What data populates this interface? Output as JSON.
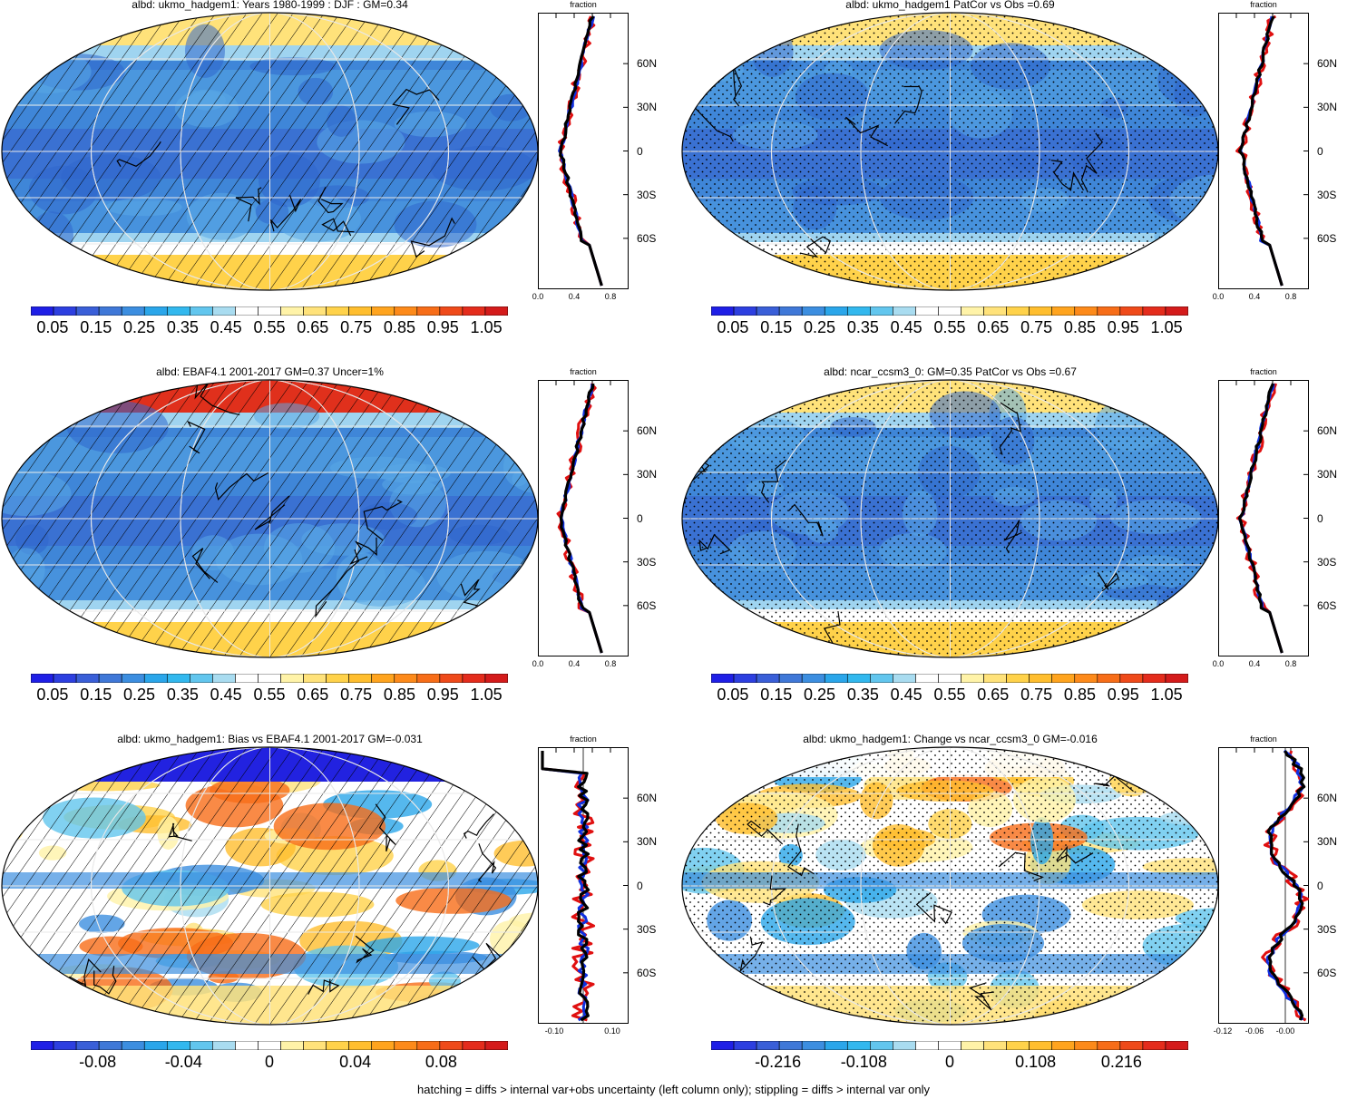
{
  "panels": [
    {
      "id": "p1",
      "title": "albd: ukmo_hadgem1: Years 1980-1999 : DJF : GM=0.34",
      "col": 0,
      "row": 0,
      "palette": "abs",
      "overlay": "hatch",
      "polar": "yellow"
    },
    {
      "id": "p2",
      "title": "albd: ukmo_hadgem1 PatCor vs Obs =0.69",
      "col": 1,
      "row": 0,
      "palette": "abs",
      "overlay": "stipple",
      "polar": "yellow"
    },
    {
      "id": "p3",
      "title": "albd: EBAF4.1 2001-2017 GM=0.37 Uncer=1%",
      "col": 0,
      "row": 1,
      "palette": "abs",
      "overlay": "hatch",
      "polar": "red"
    },
    {
      "id": "p4",
      "title": "albd: ncar_ccsm3_0: GM=0.35 PatCor vs Obs =0.67",
      "col": 1,
      "row": 1,
      "palette": "abs",
      "overlay": "stipple",
      "polar": "yellow"
    },
    {
      "id": "p5",
      "title": "albd: ukmo_hadgem1: Bias vs EBAF4.1 2001-2017 GM=-0.031",
      "col": 0,
      "row": 2,
      "palette": "diff",
      "overlay": "hatch",
      "polar": "blue"
    },
    {
      "id": "p6",
      "title": "albd: ukmo_hadgem1: Change vs ncar_ccsm3_0 GM=-0.016",
      "col": 1,
      "row": 2,
      "palette": "diff",
      "overlay": "stipple",
      "polar": "mixed"
    }
  ],
  "colorbars": {
    "abs_labels": [
      "0.05",
      "0.15",
      "0.25",
      "0.35",
      "0.45",
      "0.55",
      "0.65",
      "0.75",
      "0.85",
      "0.95",
      "1.05"
    ],
    "bias_labels": [
      "-0.08",
      "-0.04",
      "0",
      "0.04",
      "0.08"
    ],
    "change_labels": [
      "-0.216",
      "-0.108",
      "0",
      "0.108",
      "0.216"
    ],
    "abs_colors": [
      "#1f1fe6",
      "#2d3fe0",
      "#3a5fd8",
      "#3f78d8",
      "#3c8ee0",
      "#2aa6ea",
      "#32b8ee",
      "#62c6ee",
      "#a9dcf0",
      "#ffffff",
      "#ffffff",
      "#fff3a8",
      "#ffe27a",
      "#ffd24a",
      "#ffbe2e",
      "#ffa41e",
      "#fd8a1a",
      "#f76d18",
      "#ef4a1a",
      "#e42c1c",
      "#d41b1b"
    ],
    "diff_colors": [
      "#1f1fe6",
      "#2d3fe0",
      "#3a5fd8",
      "#3f78d8",
      "#3c8ee0",
      "#2aa6ea",
      "#32b8ee",
      "#62c6ee",
      "#a9dcf0",
      "#ffffff",
      "#ffffff",
      "#fff3a8",
      "#ffe27a",
      "#ffd24a",
      "#ffbe2e",
      "#ffa41e",
      "#fd8a1a",
      "#f76d18",
      "#ef4a1a",
      "#e42c1c",
      "#d41b1b"
    ]
  },
  "zonal": {
    "axis_title": "fraction",
    "lat_labels": [
      "60N",
      "30N",
      "0",
      "30S",
      "60S"
    ],
    "abs_xticks": [
      "0.0",
      "0.4",
      "0.8"
    ],
    "bias_xticks": [
      "-0.10",
      "0.10"
    ],
    "change_xticks": [
      "-0.12",
      "-0.06",
      "-0.00"
    ],
    "line_colors": {
      "model": "#e01010",
      "obs": "#1030e0",
      "mean": "#000000"
    }
  },
  "footer": "hatching = diffs > internal var+obs uncertainty (left column only); stippling = diffs > internal var only"
}
